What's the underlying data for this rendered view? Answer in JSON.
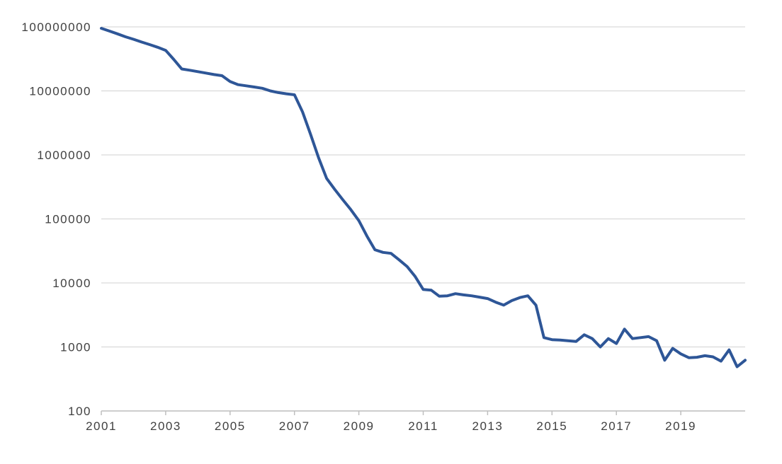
{
  "chart_data": {
    "type": "line",
    "title": "",
    "xlabel": "",
    "ylabel": "",
    "y_scale": "log",
    "xlim": [
      2001,
      2021
    ],
    "ylim": [
      100,
      100000000
    ],
    "grid": "horizontal",
    "legend": "none",
    "line_color": "#2e5697",
    "grid_color": "#d9d9d9",
    "axis_color": "#bfbfbf",
    "label_color": "#404040",
    "x_tick_years": [
      2001,
      2003,
      2005,
      2007,
      2009,
      2011,
      2013,
      2015,
      2017,
      2019
    ],
    "x_tick_labels": [
      "2001",
      "2003",
      "2005",
      "2007",
      "2009",
      "2011",
      "2013",
      "2015",
      "2017",
      "2019"
    ],
    "y_tick_values": [
      100,
      1000,
      10000,
      100000,
      1000000,
      10000000,
      100000000
    ],
    "y_tick_labels": [
      "100",
      "1000",
      "10000",
      "100000",
      "1000000",
      "10000000",
      "100000000"
    ],
    "x": [
      2001,
      2001.25,
      2001.5,
      2001.75,
      2002,
      2002.25,
      2002.5,
      2002.75,
      2003,
      2003.25,
      2003.5,
      2003.75,
      2004,
      2004.25,
      2004.5,
      2004.75,
      2005,
      2005.25,
      2005.5,
      2005.75,
      2006,
      2006.25,
      2006.5,
      2006.75,
      2007,
      2007.25,
      2007.5,
      2007.75,
      2008,
      2008.25,
      2008.5,
      2008.75,
      2009,
      2009.25,
      2009.5,
      2009.75,
      2010,
      2010.25,
      2010.5,
      2010.75,
      2011,
      2011.25,
      2011.5,
      2011.75,
      2012,
      2012.25,
      2012.5,
      2012.75,
      2013,
      2013.25,
      2013.5,
      2013.75,
      2014,
      2014.25,
      2014.5,
      2014.75,
      2015,
      2015.25,
      2015.5,
      2015.75,
      2016,
      2016.25,
      2016.5,
      2016.75,
      2017,
      2017.25,
      2017.5,
      2017.75,
      2018,
      2018.25,
      2018.5,
      2018.75,
      2019,
      2019.25,
      2019.5,
      2019.75,
      2020,
      2020.25,
      2020.5,
      2020.75,
      2021
    ],
    "series": [
      {
        "name": "values",
        "values": [
          95000000,
          86000000,
          78000000,
          70000000,
          64000000,
          58000000,
          53000000,
          48000000,
          43000000,
          31000000,
          22000000,
          21000000,
          20000000,
          19000000,
          18000000,
          17300000,
          14000000,
          12500000,
          12000000,
          11500000,
          11000000,
          10000000,
          9400000,
          9000000,
          8700000,
          4700000,
          2100000,
          900000,
          430000,
          290000,
          200000,
          140000,
          94000,
          54000,
          33000,
          30000,
          29000,
          23000,
          18000,
          12600,
          7900,
          7700,
          6200,
          6300,
          6800,
          6500,
          6300,
          6000,
          5700,
          5000,
          4500,
          5300,
          5900,
          6300,
          4500,
          1400,
          1300,
          1280,
          1250,
          1220,
          1550,
          1350,
          1000,
          1350,
          1130,
          1900,
          1350,
          1400,
          1450,
          1250,
          620,
          950,
          780,
          680,
          690,
          730,
          700,
          600,
          900,
          490,
          620
        ]
      }
    ]
  }
}
